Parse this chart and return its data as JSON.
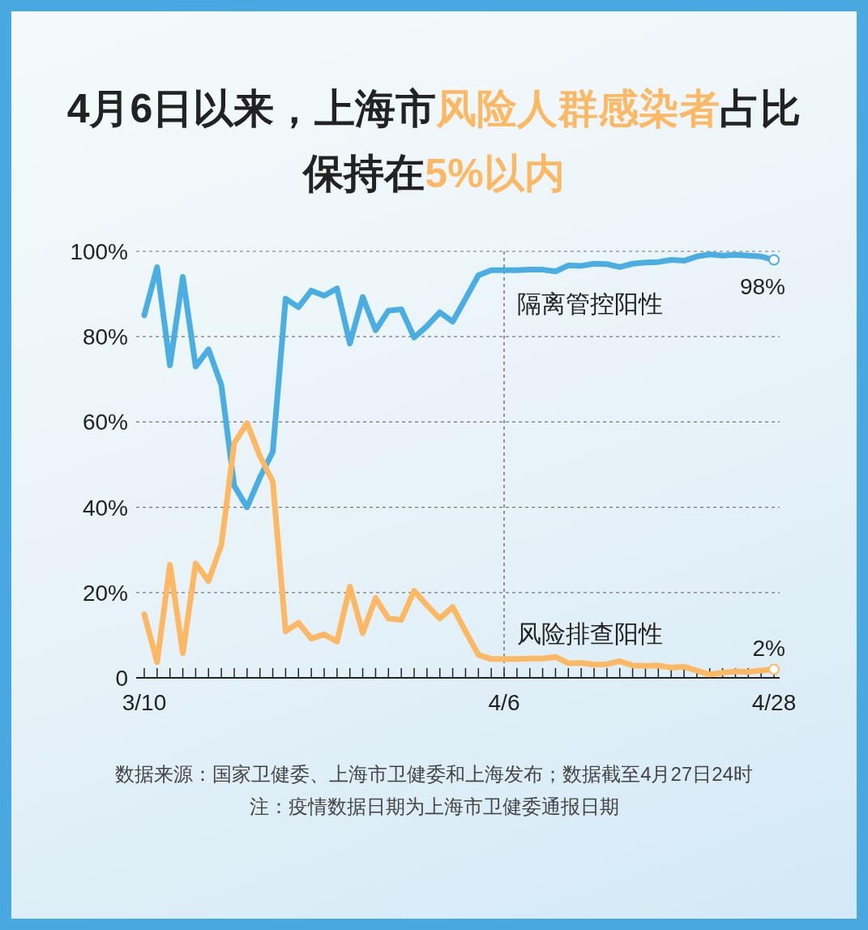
{
  "chart_data": {
    "type": "line",
    "title": "4月6日以来，上海市**风险人群感染者**占比保持在**5%以内**",
    "categories": [
      "3/10",
      null,
      null,
      null,
      null,
      null,
      null,
      null,
      null,
      null,
      null,
      null,
      null,
      null,
      null,
      null,
      null,
      null,
      null,
      null,
      null,
      null,
      null,
      null,
      null,
      null,
      null,
      null,
      "4/6",
      null,
      null,
      null,
      null,
      null,
      null,
      null,
      null,
      null,
      null,
      null,
      null,
      null,
      null,
      null,
      null,
      null,
      null,
      null,
      null,
      "4/28"
    ],
    "series": [
      {
        "name": "隔离管控阳性",
        "color": "#4aaee3",
        "values": [
          85,
          96.3,
          73.3,
          94,
          73,
          77,
          68.6,
          45,
          40,
          47,
          53,
          88.9,
          86.9,
          90.8,
          89.6,
          91.3,
          78.4,
          89.3,
          81.5,
          86.1,
          86.4,
          79.8,
          82.5,
          85.7,
          83.5,
          88.9,
          94.4,
          95.6,
          95.6,
          95.6,
          95.7,
          95.7,
          95.3,
          96.7,
          96.6,
          97.1,
          97,
          96.3,
          97.1,
          97.4,
          97.5,
          98,
          97.8,
          98.8,
          99.3,
          99,
          99.2,
          99,
          98.8,
          98
        ],
        "value_labels": [
          null,
          null,
          null,
          null,
          null,
          null,
          null,
          null,
          null,
          null,
          null,
          null,
          null,
          null,
          null,
          null,
          null,
          null,
          null,
          null,
          null,
          null,
          null,
          null,
          null,
          null,
          null,
          null,
          null,
          null,
          null,
          null,
          null,
          null,
          null,
          null,
          null,
          null,
          null,
          null,
          null,
          null,
          null,
          null,
          null,
          null,
          null,
          null,
          null,
          "98%"
        ]
      },
      {
        "name": "风险排查阳性",
        "color": "#fdb863",
        "values": [
          14.9,
          3.7,
          26.5,
          5.8,
          26.8,
          22.7,
          31.2,
          55,
          59.7,
          52,
          46,
          10.9,
          12.9,
          9.2,
          10.2,
          8.5,
          21.4,
          10.5,
          18.7,
          13.9,
          13.6,
          20.4,
          17,
          13.9,
          16.6,
          10.9,
          5.4,
          4.4,
          4.4,
          4.4,
          4.5,
          4.5,
          4.9,
          3.4,
          3.5,
          3.1,
          3.2,
          3.9,
          2.9,
          2.8,
          2.9,
          2.4,
          2.6,
          1.7,
          0.8,
          1.2,
          1.5,
          1.4,
          1.7,
          2
        ],
        "value_labels": [
          null,
          null,
          null,
          null,
          null,
          null,
          null,
          null,
          null,
          null,
          null,
          null,
          null,
          null,
          null,
          null,
          null,
          null,
          null,
          null,
          null,
          null,
          null,
          null,
          null,
          null,
          null,
          null,
          null,
          null,
          null,
          null,
          null,
          null,
          null,
          null,
          null,
          null,
          null,
          null,
          null,
          null,
          null,
          null,
          null,
          null,
          null,
          null,
          null,
          "2%"
        ]
      }
    ],
    "ylim": [
      0,
      100
    ],
    "yticks": [
      0,
      {
        "value": 20,
        "label": "20%"
      },
      {
        "value": 40,
        "label": "40%"
      },
      {
        "value": 60,
        "label": "60%"
      },
      {
        "value": 80,
        "label": "80%"
      },
      {
        "value": 100,
        "label": "100%"
      }
    ],
    "grid": "y",
    "legend": false,
    "ref_lines": [
      {
        "axis": "x",
        "value": "4/6",
        "line_style": "dashed"
      }
    ],
    "annotations": [
      "数据来源：国家卫健委、上海市卫健委和上海发布；数据截至4月27日24时",
      "注：疫情数据日期为上海市卫健委通报日期"
    ]
  }
}
